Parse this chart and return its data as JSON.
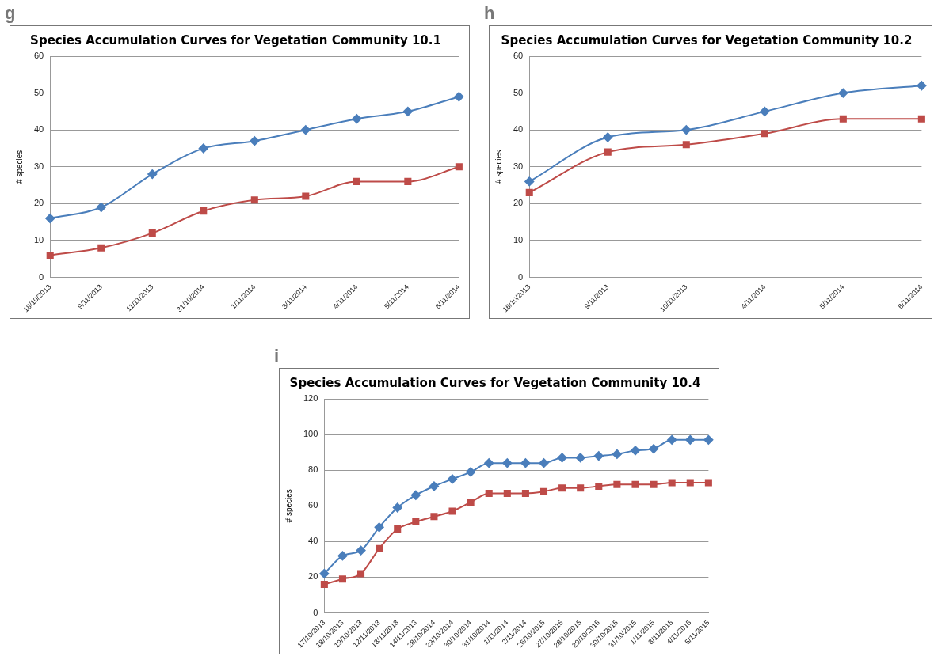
{
  "chart_data": [
    {
      "type": "line",
      "title": "Species Accumulation Curves for Vegetation Community 10.1",
      "ylabel": "# species",
      "annotations": [
        "g"
      ],
      "categories": [
        "18/10/2013",
        "9/11/2013",
        "11/11/2013",
        "31/10/2014",
        "1/11/2014",
        "3/11/2014",
        "4/11/2014",
        "5/11/2014",
        "6/11/2014"
      ],
      "ylim": [
        0,
        60
      ],
      "yticks": [
        0,
        10,
        20,
        30,
        40,
        50,
        60
      ],
      "grid": "y",
      "legend": false,
      "series": [
        {
          "color": "#4a7ebb",
          "marker": "diamond",
          "values": [
            16,
            19,
            28,
            35,
            37,
            40,
            43,
            45,
            49
          ]
        },
        {
          "color": "#be4b48",
          "marker": "square",
          "values": [
            6,
            8,
            12,
            18,
            21,
            22,
            26,
            26,
            30
          ]
        }
      ]
    },
    {
      "type": "line",
      "title": "Species Accumulation Curves for Vegetation Community 10.2",
      "ylabel": "# species",
      "annotations": [
        "h"
      ],
      "categories": [
        "16/10/2013",
        "9/11/2013",
        "10/11/2013",
        "4/11/2014",
        "5/11/2014",
        "6/11/2014"
      ],
      "ylim": [
        0,
        60
      ],
      "yticks": [
        0,
        10,
        20,
        30,
        40,
        50,
        60
      ],
      "grid": "y",
      "legend": false,
      "series": [
        {
          "color": "#4a7ebb",
          "marker": "diamond",
          "values": [
            26,
            38,
            40,
            45,
            50,
            52
          ]
        },
        {
          "color": "#be4b48",
          "marker": "square",
          "values": [
            23,
            34,
            36,
            39,
            43,
            43
          ]
        }
      ]
    },
    {
      "type": "line",
      "title": "Species Accumulation Curves for Vegetation Community 10.4",
      "ylabel": "# species",
      "annotations": [
        "i"
      ],
      "categories": [
        "17/10/2013",
        "18/10/2013",
        "19/10/2013",
        "12/11/2013",
        "13/11/2013",
        "14/11/2013",
        "28/10/2014",
        "29/10/2014",
        "30/10/2014",
        "31/10/2014",
        "1/11/2014",
        "2/11/2014",
        "26/10/2015",
        "27/10/2015",
        "28/10/2015",
        "29/10/2015",
        "30/10/2015",
        "31/10/2015",
        "1/11/2015",
        "3/11/2015",
        "4/11/2015",
        "5/11/2015"
      ],
      "ylim": [
        0,
        120
      ],
      "yticks": [
        0,
        20,
        40,
        60,
        80,
        100,
        120
      ],
      "grid": "y",
      "legend": false,
      "series": [
        {
          "color": "#4a7ebb",
          "marker": "diamond",
          "values": [
            22,
            32,
            35,
            48,
            59,
            66,
            71,
            75,
            79,
            84,
            84,
            84,
            84,
            87,
            87,
            88,
            89,
            91,
            92,
            97,
            97,
            97
          ]
        },
        {
          "color": "#be4b48",
          "marker": "square",
          "values": [
            16,
            19,
            22,
            36,
            47,
            51,
            54,
            57,
            62,
            67,
            67,
            67,
            68,
            70,
            70,
            71,
            72,
            72,
            72,
            73,
            73,
            73
          ]
        }
      ]
    }
  ]
}
